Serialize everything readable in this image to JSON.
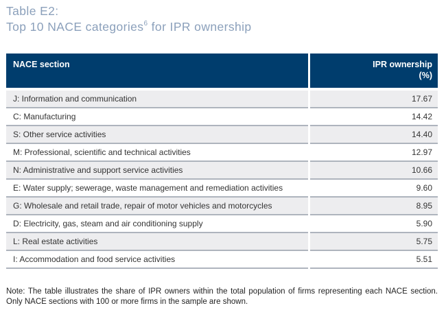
{
  "title": {
    "line1": "Table E2:",
    "line2_prefix": "Top 10 NACE categories",
    "footnote_marker": "6",
    "line2_suffix": " for IPR ownership"
  },
  "colors": {
    "header_bg": "#003d6d",
    "header_text": "#ffffff",
    "title_text": "#8ba0bb",
    "row_alt_bg": "#ededef",
    "row_separator": "#aeb4bd"
  },
  "table": {
    "header": {
      "section": "NACE section",
      "value_line1": "IPR ownership",
      "value_line2": "(%)"
    },
    "rows": [
      {
        "section": "J: Information and communication",
        "value": "17.67"
      },
      {
        "section": "C: Manufacturing",
        "value": "14.42"
      },
      {
        "section": "S: Other service activities",
        "value": "14.40"
      },
      {
        "section": "M: Professional, scientific and technical activities",
        "value": "12.97"
      },
      {
        "section": "N: Administrative and support service activities",
        "value": "10.66"
      },
      {
        "section": "E: Water supply; sewerage, waste management and remediation activities",
        "value": "9.60"
      },
      {
        "section": "G: Wholesale and retail trade, repair of motor vehicles and motorcycles",
        "value": "8.95"
      },
      {
        "section": "D: Electricity, gas, steam and air conditioning supply",
        "value": "5.90"
      },
      {
        "section": "L: Real estate activities",
        "value": "5.75"
      },
      {
        "section": "I: Accommodation and food service activities",
        "value": "5.51"
      }
    ]
  },
  "note": "Note: The table illustrates the share of IPR owners within the total population of firms representing each NACE section. Only NACE sections with 100 or more firms in the sample are shown."
}
